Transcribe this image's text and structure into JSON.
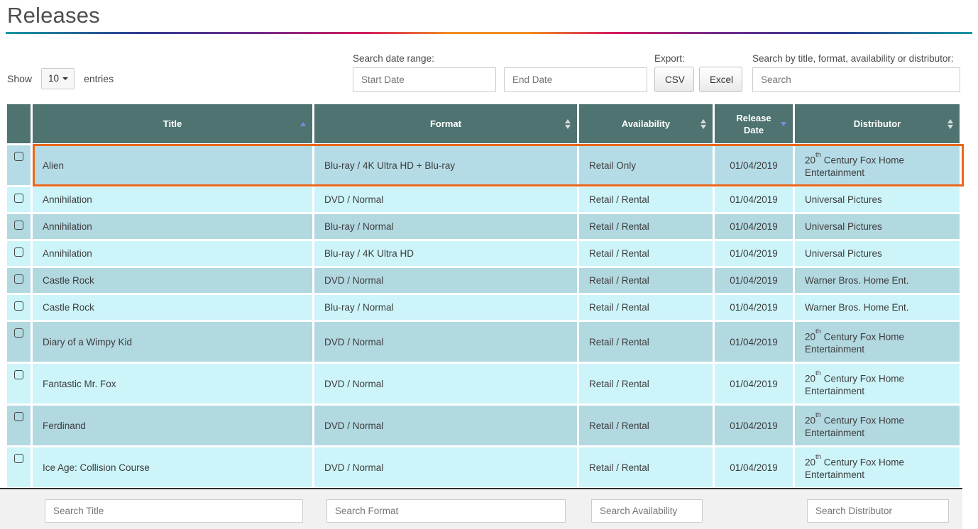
{
  "page": {
    "title": "Releases"
  },
  "controls": {
    "show_label": "Show",
    "page_size": "10",
    "entries_label": "entries",
    "date_range_label": "Search date range:",
    "start_date_placeholder": "Start Date",
    "end_date_placeholder": "End Date",
    "export_label": "Export:",
    "csv_button": "CSV",
    "excel_button": "Excel",
    "search_label": "Search by title, format, availability or distributor:",
    "search_placeholder": "Search"
  },
  "table": {
    "columns": [
      "Title",
      "Format",
      "Availability",
      "Release Date",
      "Distributor"
    ],
    "sort_state": {
      "title": "ascending",
      "release_date": "descending"
    },
    "rows": [
      {
        "title": "Alien",
        "format": "Blu-ray / 4K Ultra HD + Blu-ray",
        "availability": "Retail Only",
        "release_date": "01/04/2019",
        "distributor": [
          {
            "t": "20"
          },
          {
            "t": "th",
            "sup": true
          },
          {
            "t": " Century Fox Home Entertainment"
          }
        ],
        "shade": "selected",
        "tall": true,
        "highlighted": true
      },
      {
        "title": "Annihilation",
        "format": "DVD / Normal",
        "availability": "Retail / Rental",
        "release_date": "01/04/2019",
        "distributor": [
          {
            "t": "Universal Pictures"
          }
        ],
        "shade": "light",
        "tall": false,
        "highlighted": false
      },
      {
        "title": "Annihilation",
        "format": "Blu-ray / Normal",
        "availability": "Retail / Rental",
        "release_date": "01/04/2019",
        "distributor": [
          {
            "t": "Universal Pictures"
          }
        ],
        "shade": "dark",
        "tall": false,
        "highlighted": false
      },
      {
        "title": "Annihilation",
        "format": "Blu-ray / 4K Ultra HD",
        "availability": "Retail / Rental",
        "release_date": "01/04/2019",
        "distributor": [
          {
            "t": "Universal Pictures"
          }
        ],
        "shade": "light",
        "tall": false,
        "highlighted": false
      },
      {
        "title": "Castle Rock",
        "format": "DVD / Normal",
        "availability": "Retail / Rental",
        "release_date": "01/04/2019",
        "distributor": [
          {
            "t": "Warner Bros. Home Ent."
          }
        ],
        "shade": "dark",
        "tall": false,
        "highlighted": false
      },
      {
        "title": "Castle Rock",
        "format": "Blu-ray / Normal",
        "availability": "Retail / Rental",
        "release_date": "01/04/2019",
        "distributor": [
          {
            "t": "Warner Bros. Home Ent."
          }
        ],
        "shade": "light",
        "tall": false,
        "highlighted": false
      },
      {
        "title": "Diary of a Wimpy Kid",
        "format": "DVD / Normal",
        "availability": "Retail / Rental",
        "release_date": "01/04/2019",
        "distributor": [
          {
            "t": "20"
          },
          {
            "t": "th",
            "sup": true
          },
          {
            "t": " Century Fox Home Entertainment"
          }
        ],
        "shade": "dark",
        "tall": true,
        "highlighted": false
      },
      {
        "title": "Fantastic Mr. Fox",
        "format": "DVD / Normal",
        "availability": "Retail / Rental",
        "release_date": "01/04/2019",
        "distributor": [
          {
            "t": "20"
          },
          {
            "t": "th",
            "sup": true
          },
          {
            "t": " Century Fox Home Entertainment"
          }
        ],
        "shade": "light",
        "tall": true,
        "highlighted": false
      },
      {
        "title": "Ferdinand",
        "format": "DVD / Normal",
        "availability": "Retail / Rental",
        "release_date": "01/04/2019",
        "distributor": [
          {
            "t": "20"
          },
          {
            "t": "th",
            "sup": true
          },
          {
            "t": " Century Fox Home Entertainment"
          }
        ],
        "shade": "dark",
        "tall": true,
        "highlighted": false
      },
      {
        "title": "Ice Age: Collision Course",
        "format": "DVD / Normal",
        "availability": "Retail / Rental",
        "release_date": "01/04/2019",
        "distributor": [
          {
            "t": "20"
          },
          {
            "t": "th",
            "sup": true
          },
          {
            "t": " Century Fox Home Entertainment"
          }
        ],
        "shade": "light",
        "tall": true,
        "highlighted": false
      }
    ]
  },
  "footer": {
    "search_title_placeholder": "Search Title",
    "search_format_placeholder": "Search Format",
    "search_availability_placeholder": "Search Availability",
    "search_distributor_placeholder": "Search Distributor"
  },
  "colors": {
    "header_background": "#4e7370",
    "row_light": "#ccf4f9",
    "row_dark": "#b2d8e0",
    "row_selected": "#b5dce6",
    "highlight_border": "#e8671c",
    "active_sort_arrow": "#7d8ae2",
    "gradient_rule": [
      "#1898a3",
      "#2f3a8f",
      "#702b8e",
      "#d31a5e",
      "#f18f21"
    ]
  }
}
